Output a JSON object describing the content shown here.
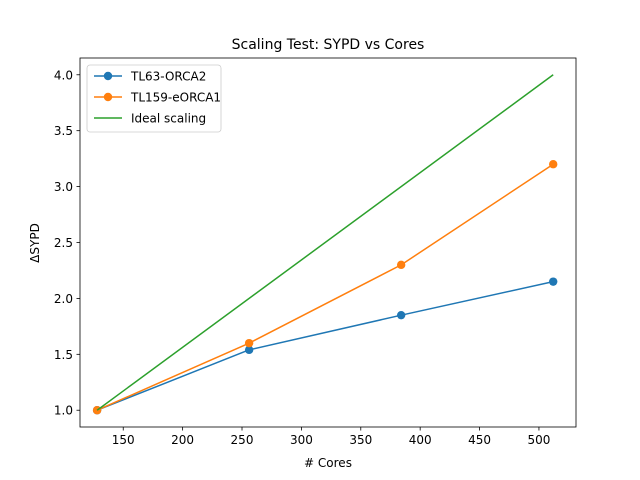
{
  "chart_data": {
    "type": "line",
    "title": "Scaling Test: SYPD vs Cores",
    "xlabel": "# Cores",
    "ylabel": "ΔSYPD",
    "xlim": [
      113.6,
      531.2
    ],
    "ylim": [
      0.85,
      4.15
    ],
    "xticks": [
      150,
      200,
      250,
      300,
      350,
      400,
      450,
      500
    ],
    "yticks": [
      1.0,
      1.5,
      2.0,
      2.5,
      3.0,
      3.5,
      4.0
    ],
    "grid": false,
    "legend_position": "top-left",
    "series": [
      {
        "name": "TL63-ORCA2",
        "color": "#1f77b4",
        "marker": "circle",
        "x": [
          128,
          256,
          384,
          512
        ],
        "y": [
          1.0,
          1.54,
          1.85,
          2.15
        ]
      },
      {
        "name": "TL159-eORCA1",
        "color": "#ff7f0e",
        "marker": "circle",
        "x": [
          128,
          256,
          384,
          512
        ],
        "y": [
          1.0,
          1.6,
          2.3,
          3.2
        ]
      },
      {
        "name": "Ideal scaling",
        "color": "#2ca02c",
        "marker": "none",
        "x": [
          128,
          512
        ],
        "y": [
          1.0,
          4.0
        ]
      }
    ]
  }
}
